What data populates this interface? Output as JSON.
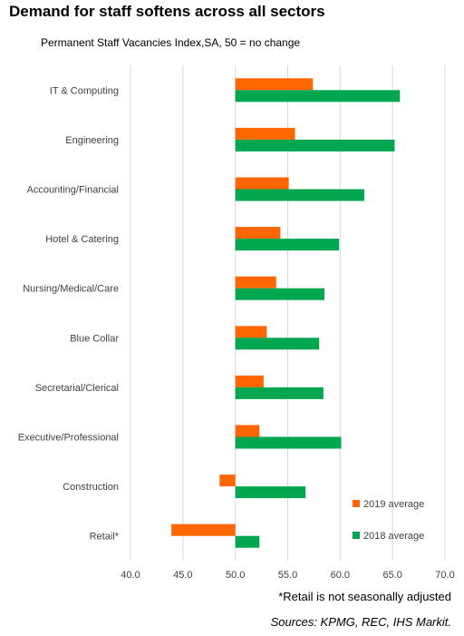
{
  "chart_data": {
    "type": "bar",
    "orientation": "horizontal",
    "title": "Demand for staff softens across all sectors",
    "subtitle": "Permanent Staff Vacancies Index,SA, 50 = no change",
    "categories": [
      "IT & Computing",
      "Engineering",
      "Accounting/Financial",
      "Hotel & Catering",
      "Nursing/Medical/Care",
      "Blue Collar",
      "Secretarial/Clerical",
      "Executive/Professional",
      "Construction",
      "Retail*"
    ],
    "series": [
      {
        "name": "2019 average",
        "color": "#FF6600",
        "values": [
          57.4,
          55.7,
          55.1,
          54.3,
          53.9,
          53.0,
          52.7,
          52.3,
          48.5,
          43.9
        ]
      },
      {
        "name": "2018 average",
        "color": "#00A650",
        "values": [
          65.7,
          65.2,
          62.3,
          59.9,
          58.5,
          58.0,
          58.4,
          60.1,
          56.7,
          52.3
        ]
      }
    ],
    "baseline": 50,
    "xlim": [
      40,
      70
    ],
    "xticks": [
      "40.0",
      "45.0",
      "50.0",
      "55.0",
      "60.0",
      "65.0",
      "70.0"
    ],
    "grid": "vertical",
    "legend_position": "bottom-right"
  },
  "footnote": "*Retail is not seasonally adjusted",
  "sources": "Sources: KPMG, REC, IHS Markit."
}
